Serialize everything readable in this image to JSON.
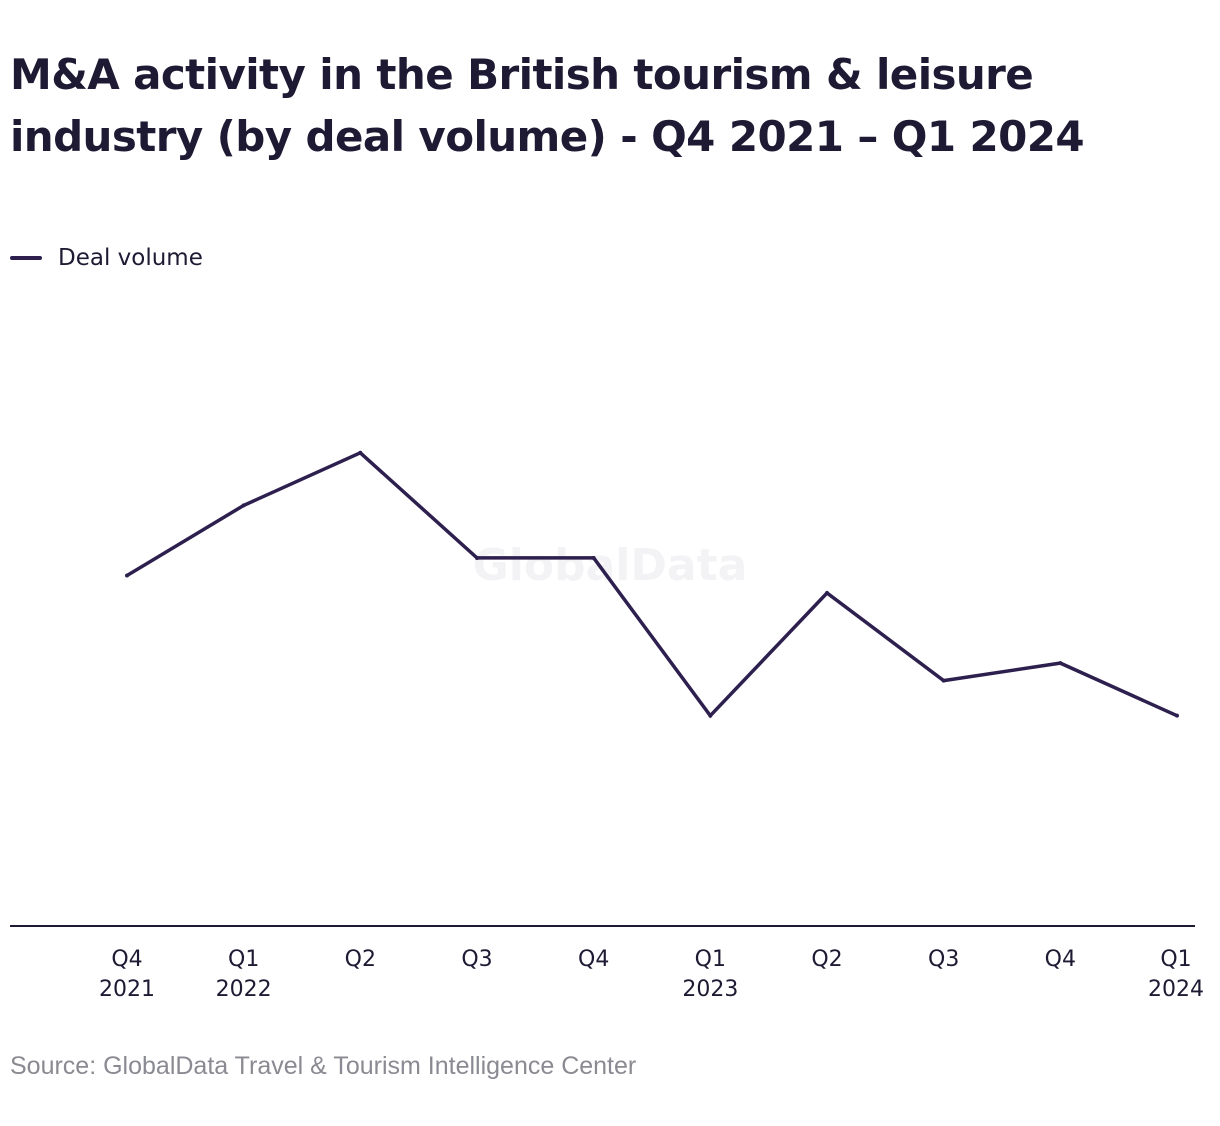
{
  "chart_data": {
    "type": "line",
    "title": "M&A activity in the British tourism & leisure industry (by deal volume) - Q4 2021 – Q1 2024",
    "source": "Source: GlobalData Travel & Tourism Intelligence Center",
    "watermark": "GlobalData",
    "legend": {
      "position": "top-left"
    },
    "x": [
      "Q4 2021",
      "Q1 2022",
      "Q2 2022",
      "Q3 2022",
      "Q4 2022",
      "Q1 2023",
      "Q2 2023",
      "Q3 2023",
      "Q4 2023",
      "Q1 2024"
    ],
    "tick_labels": [
      {
        "line1": "Q4",
        "line2": "2021"
      },
      {
        "line1": "Q1",
        "line2": "2022"
      },
      {
        "line1": "Q2",
        "line2": ""
      },
      {
        "line1": "Q3",
        "line2": ""
      },
      {
        "line1": "Q4",
        "line2": ""
      },
      {
        "line1": "Q1",
        "line2": "2023"
      },
      {
        "line1": "Q2",
        "line2": ""
      },
      {
        "line1": "Q3",
        "line2": ""
      },
      {
        "line1": "Q4",
        "line2": ""
      },
      {
        "line1": "Q1",
        "line2": "2024"
      }
    ],
    "series": [
      {
        "name": "Deal volume",
        "color": "#2d1f4e",
        "values": [
          200,
          240,
          270,
          210,
          210,
          120,
          190,
          140,
          150,
          120
        ]
      }
    ],
    "ylim": [
      0,
      380
    ],
    "xlabel": "",
    "ylabel": "",
    "grid": false
  }
}
